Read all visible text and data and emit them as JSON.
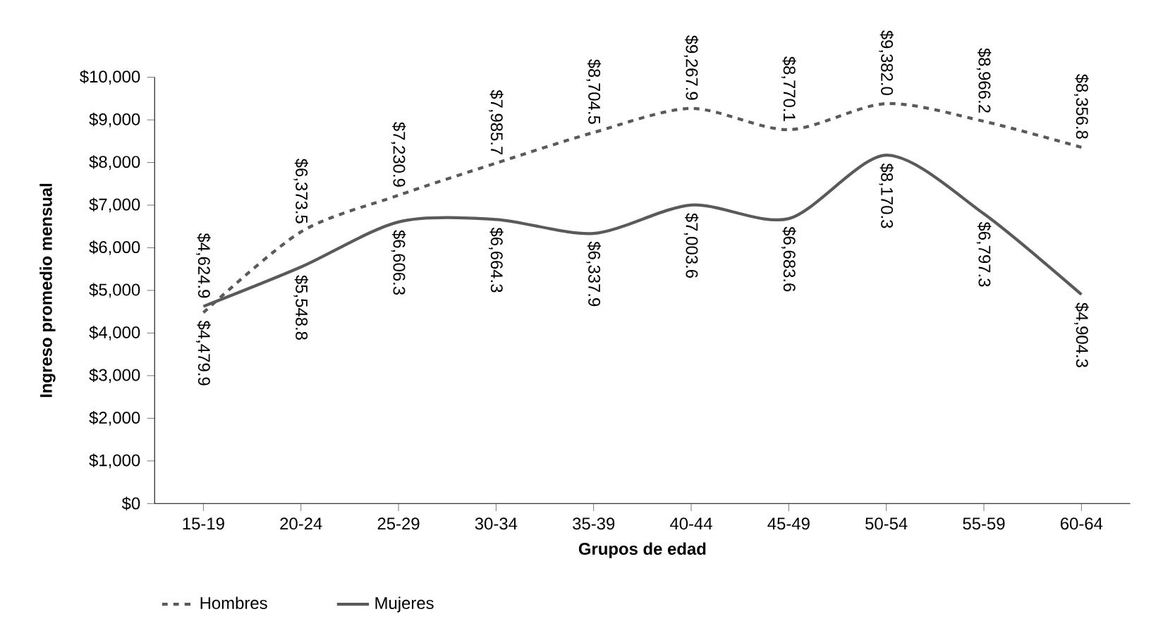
{
  "chart_data": {
    "type": "line",
    "xlabel": "Grupos de edad",
    "ylabel": "Ingreso promedio mensual",
    "categories": [
      "15-19",
      "20-24",
      "25-29",
      "30-34",
      "35-39",
      "40-44",
      "45-49",
      "50-54",
      "55-59",
      "60-64"
    ],
    "series": [
      {
        "name": "Hombres",
        "color": "#5a5a5a",
        "line_style": "dashed",
        "values": [
          4479.9,
          6373.5,
          7230.9,
          7985.7,
          8704.5,
          9267.9,
          8770.1,
          9382.0,
          8966.2,
          8356.8
        ],
        "value_labels": [
          "$4,479.9",
          "$6,373.5",
          "$7,230.9",
          "$7,985.7",
          "$8,704.5",
          "$9,267.9",
          "$8,770.1",
          "$9,382.0",
          "$8,966.2",
          "$8,356.8"
        ]
      },
      {
        "name": "Mujeres",
        "color": "#5a5a5a",
        "line_style": "solid",
        "values": [
          4624.9,
          5548.8,
          6606.3,
          6664.3,
          6337.9,
          7003.6,
          6683.6,
          8170.3,
          6797.3,
          4904.3
        ],
        "value_labels": [
          "$4,624.9",
          "$5,548.8",
          "$6,606.3",
          "$6,664.3",
          "$6,337.9",
          "$7,003.6",
          "$6,683.6",
          "$8,170.3",
          "$6,797.3",
          "$4,904.3"
        ]
      }
    ],
    "ylim": [
      0,
      10000
    ],
    "yticks": [
      {
        "value": 0,
        "label": "$0"
      },
      {
        "value": 1000,
        "label": "$1,000"
      },
      {
        "value": 2000,
        "label": "$2,000"
      },
      {
        "value": 3000,
        "label": "$3,000"
      },
      {
        "value": 4000,
        "label": "$4,000"
      },
      {
        "value": 5000,
        "label": "$5,000"
      },
      {
        "value": 6000,
        "label": "$6,000"
      },
      {
        "value": 7000,
        "label": "$7,000"
      },
      {
        "value": 8000,
        "label": "$8,000"
      },
      {
        "value": 9000,
        "label": "$9,000"
      },
      {
        "value": 10000,
        "label": "$10,000"
      }
    ],
    "grid": false,
    "legend": "bottom left",
    "marker": "none"
  }
}
